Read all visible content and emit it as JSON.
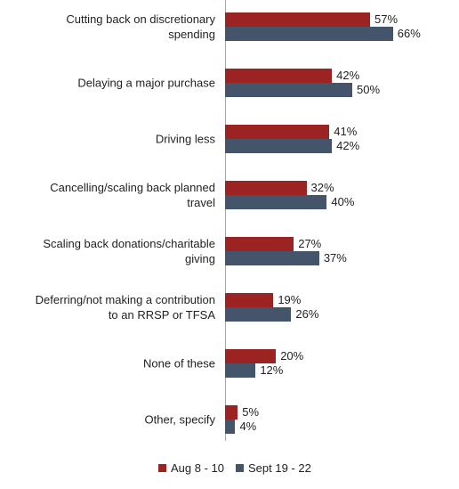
{
  "chart_data": {
    "type": "hbar",
    "categories": [
      "Cutting back on discretionary spending",
      "Delaying a major purchase",
      "Driving less",
      "Cancelling/scaling back planned travel",
      "Scaling back donations/charitable giving",
      "Deferring/not making a contribution to an RRSP or TFSA",
      "None of these",
      "Other, specify"
    ],
    "series": [
      {
        "name": "Aug 8 - 10",
        "color": "#9b2423",
        "values": [
          57,
          42,
          41,
          32,
          27,
          19,
          20,
          5
        ],
        "value_labels": [
          "57%",
          "42%",
          "41%",
          "32%",
          "27%",
          "19%",
          "20%",
          "5%"
        ]
      },
      {
        "name": "Sept 19 - 22",
        "color": "#44546a",
        "values": [
          66,
          50,
          42,
          40,
          37,
          26,
          12,
          4
        ],
        "value_labels": [
          "66%",
          "50%",
          "42%",
          "40%",
          "37%",
          "26%",
          "12%",
          "4%"
        ]
      }
    ],
    "legend": "bottom"
  }
}
